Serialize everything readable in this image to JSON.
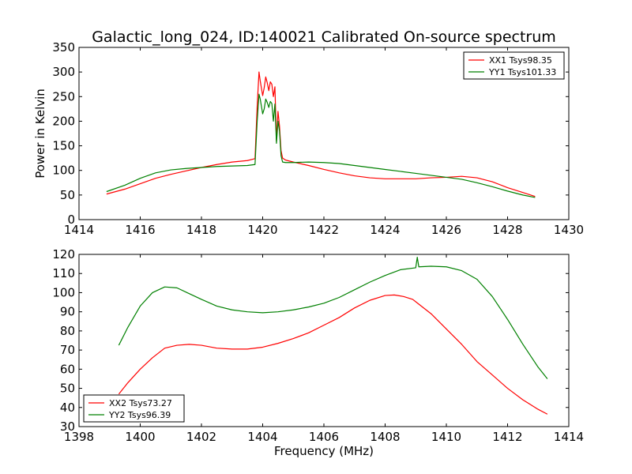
{
  "title": "Galactic_long_024, ID:140021 Calibrated On-source spectrum",
  "chart_data": [
    {
      "type": "line",
      "ylabel": "Power in Kelvin",
      "xlabel": "",
      "xlim": [
        1414,
        1430
      ],
      "ylim": [
        0,
        350
      ],
      "xticks": [
        1414,
        1416,
        1418,
        1420,
        1422,
        1424,
        1426,
        1428,
        1430
      ],
      "yticks": [
        0,
        50,
        100,
        150,
        200,
        250,
        300,
        350
      ],
      "legend_position": "top-right",
      "series": [
        {
          "name": "XX1 Tsys98.35",
          "color": "#ff0000",
          "x": [
            1414.9,
            1415.5,
            1416,
            1416.5,
            1417,
            1417.5,
            1418,
            1418.5,
            1419,
            1419.5,
            1419.75,
            1419.82,
            1419.88,
            1419.92,
            1420.0,
            1420.05,
            1420.1,
            1420.15,
            1420.2,
            1420.25,
            1420.3,
            1420.35,
            1420.4,
            1420.45,
            1420.5,
            1420.55,
            1420.6,
            1420.65,
            1420.75,
            1421,
            1421.5,
            1422,
            1422.5,
            1423,
            1423.5,
            1424,
            1424.5,
            1425,
            1425.5,
            1426,
            1426.5,
            1427,
            1427.5,
            1428,
            1428.5,
            1428.9
          ],
          "y": [
            52,
            62,
            73,
            84,
            92,
            99,
            106,
            112,
            117,
            120,
            124,
            230,
            300,
            282,
            252,
            268,
            290,
            278,
            262,
            280,
            275,
            250,
            270,
            160,
            220,
            190,
            140,
            125,
            121,
            117,
            110,
            102,
            95,
            89,
            85,
            83,
            83,
            83,
            85,
            86,
            88,
            85,
            77,
            65,
            55,
            47
          ]
        },
        {
          "name": "YY1 Tsys101.33",
          "color": "#008000",
          "x": [
            1414.9,
            1415.5,
            1416,
            1416.5,
            1417,
            1417.5,
            1418,
            1418.5,
            1419,
            1419.5,
            1419.75,
            1419.82,
            1419.88,
            1419.92,
            1420.0,
            1420.05,
            1420.1,
            1420.15,
            1420.2,
            1420.25,
            1420.3,
            1420.35,
            1420.4,
            1420.45,
            1420.5,
            1420.55,
            1420.6,
            1420.65,
            1420.75,
            1421,
            1421.5,
            1422,
            1422.5,
            1423,
            1423.5,
            1424,
            1424.5,
            1425,
            1425.5,
            1426,
            1426.5,
            1427,
            1427.5,
            1428,
            1428.5,
            1428.9
          ],
          "y": [
            57,
            70,
            84,
            95,
            101,
            104,
            106,
            108,
            109,
            110,
            112,
            200,
            255,
            245,
            215,
            225,
            245,
            238,
            228,
            240,
            236,
            200,
            235,
            155,
            200,
            180,
            130,
            117,
            116,
            116,
            117,
            116,
            114,
            110,
            106,
            102,
            98,
            94,
            90,
            86,
            82,
            75,
            67,
            58,
            50,
            45
          ]
        }
      ]
    },
    {
      "type": "line",
      "ylabel": "",
      "xlabel": "Frequency (MHz)",
      "xlim": [
        1398,
        1414
      ],
      "ylim": [
        30,
        120
      ],
      "xticks": [
        1398,
        1400,
        1402,
        1404,
        1406,
        1408,
        1410,
        1412,
        1414
      ],
      "yticks": [
        30,
        40,
        50,
        60,
        70,
        80,
        90,
        100,
        110,
        120
      ],
      "legend_position": "bottom-left",
      "series": [
        {
          "name": "XX2 Tsys73.27",
          "color": "#ff0000",
          "x": [
            1399.3,
            1399.6,
            1400,
            1400.4,
            1400.8,
            1401.2,
            1401.6,
            1402,
            1402.5,
            1403,
            1403.5,
            1404,
            1404.5,
            1405,
            1405.5,
            1406,
            1406.5,
            1407,
            1407.5,
            1408,
            1408.3,
            1408.6,
            1408.9,
            1409.1,
            1409.5,
            1410,
            1410.5,
            1411,
            1411.5,
            1412,
            1412.5,
            1413,
            1413.3
          ],
          "y": [
            47,
            53,
            60,
            66,
            71,
            72.5,
            73,
            72.5,
            71,
            70.5,
            70.5,
            71.5,
            73.5,
            76,
            79,
            83,
            87,
            92,
            96,
            98.5,
            98.8,
            98,
            96.5,
            94,
            89,
            81,
            73,
            64,
            57,
            50,
            44,
            39,
            36.5
          ]
        },
        {
          "name": "YY2 Tsys96.39",
          "color": "#008000",
          "x": [
            1399.3,
            1399.6,
            1400,
            1400.4,
            1400.8,
            1401.2,
            1401.6,
            1402,
            1402.5,
            1403,
            1403.5,
            1404,
            1404.5,
            1405,
            1405.5,
            1406,
            1406.5,
            1407,
            1407.5,
            1408,
            1408.5,
            1409,
            1409.05,
            1409.1,
            1409.5,
            1410,
            1410.5,
            1411,
            1411.5,
            1412,
            1412.5,
            1413,
            1413.3
          ],
          "y": [
            72.5,
            82,
            93,
            100,
            103,
            102.5,
            99.5,
            96.5,
            93,
            91,
            90,
            89.5,
            90,
            91,
            92.5,
            94.5,
            97.5,
            101.5,
            105.5,
            109,
            112,
            113,
            118.5,
            113.5,
            113.8,
            113.5,
            111.5,
            107,
            98,
            86,
            73,
            61,
            55
          ]
        }
      ]
    }
  ]
}
